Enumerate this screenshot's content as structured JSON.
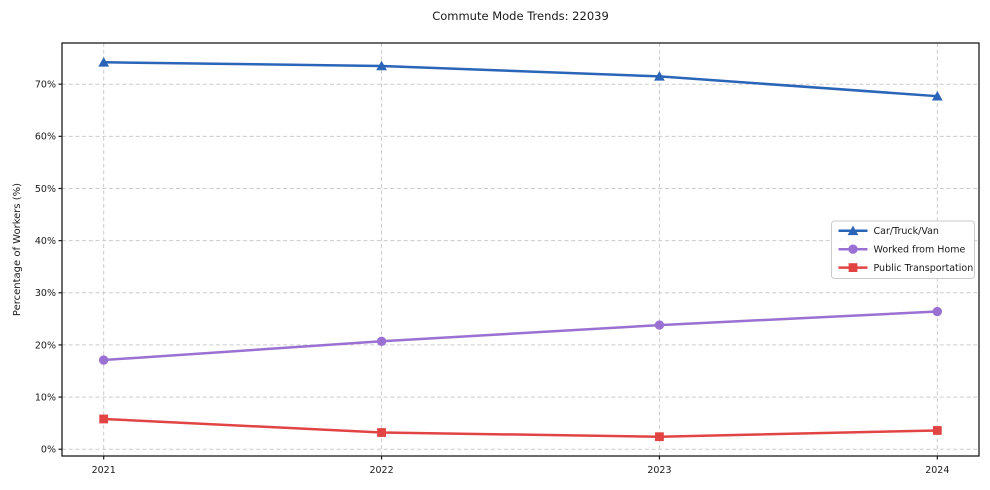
{
  "chart_data": {
    "type": "line",
    "title": "Commute Mode Trends: 22039",
    "xlabel": "",
    "ylabel": "Percentage of Workers (%)",
    "x": [
      2021,
      2022,
      2023,
      2024
    ],
    "x_tick_labels": [
      "2021",
      "2022",
      "2023",
      "2024"
    ],
    "y_ticks": [
      0,
      10,
      20,
      30,
      40,
      50,
      60,
      70
    ],
    "y_tick_suffix": "%",
    "xlim": [
      2020.85,
      2024.15
    ],
    "ylim": [
      -1.3,
      77.9
    ],
    "grid": true,
    "grid_color": "#cccccc",
    "spine_color": "#1c1c1c",
    "legend_position": "center-right",
    "series": [
      {
        "name": "Car/Truck/Van",
        "marker": "triangle",
        "color": "#2b65b8",
        "values": [
          74.2,
          73.5,
          71.5,
          67.7
        ]
      },
      {
        "name": "Worked from Home",
        "marker": "circle",
        "color": "#9a70d2",
        "values": [
          17.1,
          20.7,
          23.8,
          26.4
        ]
      },
      {
        "name": "Public Transportation",
        "marker": "square",
        "color": "#e24444",
        "values": [
          5.8,
          3.2,
          2.4,
          3.6
        ]
      }
    ]
  }
}
